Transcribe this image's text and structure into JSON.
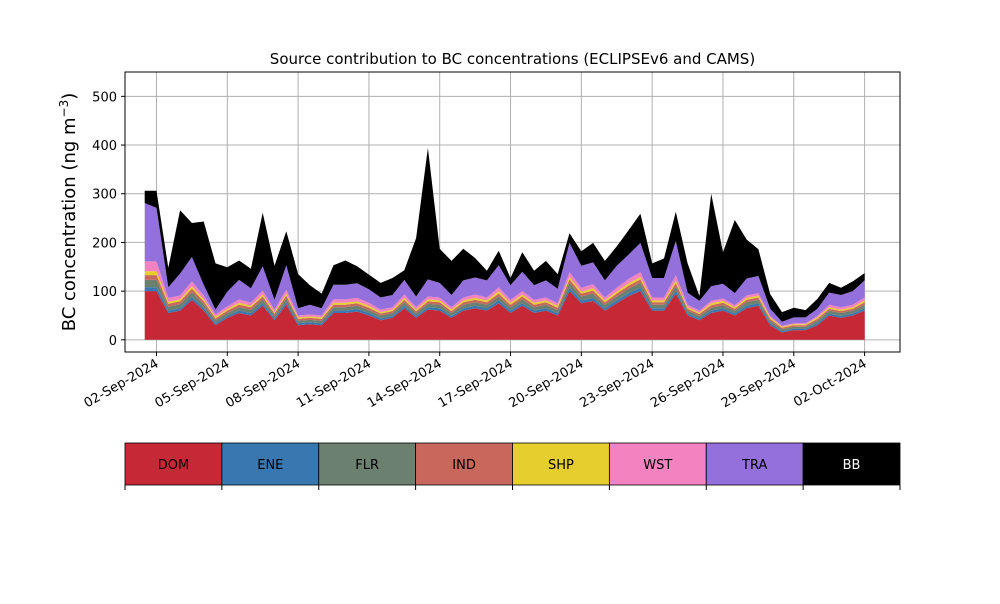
{
  "chart_data": {
    "type": "area",
    "stacked": true,
    "title": "Source contribution to BC concentrations (ECLIPSEv6 and CAMS)",
    "ylabel_main": "BC concentration (ng m",
    "ylabel_sup": "−3",
    "ylabel_close": ")",
    "xlabel": "",
    "ylim": [
      -25,
      550
    ],
    "xlim": [
      "2024-08-31T16:00",
      "2024-10-03T12:00"
    ],
    "yticks": [
      0,
      100,
      200,
      300,
      400,
      500
    ],
    "xticks": [
      {
        "date": "2024-09-02",
        "label": "02-Sep-2024"
      },
      {
        "date": "2024-09-05",
        "label": "05-Sep-2024"
      },
      {
        "date": "2024-09-08",
        "label": "08-Sep-2024"
      },
      {
        "date": "2024-09-11",
        "label": "11-Sep-2024"
      },
      {
        "date": "2024-09-14",
        "label": "14-Sep-2024"
      },
      {
        "date": "2024-09-17",
        "label": "17-Sep-2024"
      },
      {
        "date": "2024-09-20",
        "label": "20-Sep-2024"
      },
      {
        "date": "2024-09-23",
        "label": "23-Sep-2024"
      },
      {
        "date": "2024-09-26",
        "label": "26-Sep-2024"
      },
      {
        "date": "2024-09-29",
        "label": "29-Sep-2024"
      },
      {
        "date": "2024-10-02",
        "label": "02-Oct-2024"
      }
    ],
    "grid": true,
    "legend_placement": "bottom",
    "x": [
      "2024-09-01T12:00",
      "2024-09-02T00:00",
      "2024-09-02T12:00",
      "2024-09-03T00:00",
      "2024-09-03T12:00",
      "2024-09-04T00:00",
      "2024-09-04T12:00",
      "2024-09-05T00:00",
      "2024-09-05T12:00",
      "2024-09-06T00:00",
      "2024-09-06T12:00",
      "2024-09-07T00:00",
      "2024-09-07T12:00",
      "2024-09-08T00:00",
      "2024-09-08T12:00",
      "2024-09-09T00:00",
      "2024-09-09T12:00",
      "2024-09-10T00:00",
      "2024-09-10T12:00",
      "2024-09-11T00:00",
      "2024-09-11T12:00",
      "2024-09-12T00:00",
      "2024-09-12T12:00",
      "2024-09-13T00:00",
      "2024-09-13T12:00",
      "2024-09-14T00:00",
      "2024-09-14T12:00",
      "2024-09-15T00:00",
      "2024-09-15T12:00",
      "2024-09-16T00:00",
      "2024-09-16T12:00",
      "2024-09-17T00:00",
      "2024-09-17T12:00",
      "2024-09-18T00:00",
      "2024-09-18T12:00",
      "2024-09-19T00:00",
      "2024-09-19T12:00",
      "2024-09-20T00:00",
      "2024-09-20T12:00",
      "2024-09-21T00:00",
      "2024-09-21T12:00",
      "2024-09-22T00:00",
      "2024-09-22T12:00",
      "2024-09-23T00:00",
      "2024-09-23T12:00",
      "2024-09-24T00:00",
      "2024-09-24T12:00",
      "2024-09-25T00:00",
      "2024-09-25T12:00",
      "2024-09-26T00:00",
      "2024-09-26T12:00",
      "2024-09-27T00:00",
      "2024-09-27T12:00",
      "2024-09-28T00:00",
      "2024-09-28T12:00",
      "2024-09-29T00:00",
      "2024-09-29T12:00",
      "2024-09-30T00:00",
      "2024-09-30T12:00",
      "2024-10-01T00:00",
      "2024-10-01T12:00",
      "2024-10-02T00:00"
    ],
    "series": [
      {
        "name": "DOM",
        "color": "#C62836",
        "values": [
          100,
          100,
          55,
          60,
          82,
          60,
          30,
          45,
          55,
          50,
          70,
          40,
          72,
          30,
          32,
          30,
          55,
          55,
          58,
          50,
          40,
          45,
          65,
          45,
          62,
          60,
          45,
          60,
          65,
          60,
          75,
          55,
          70,
          55,
          60,
          50,
          100,
          75,
          80,
          60,
          75,
          90,
          100,
          60,
          60,
          95,
          50,
          40,
          55,
          60,
          50,
          65,
          70,
          30,
          15,
          20,
          20,
          30,
          50,
          45,
          50,
          60
        ]
      },
      {
        "name": "ENE",
        "color": "#3877B0",
        "values": [
          8,
          8,
          5,
          5,
          6,
          5,
          4,
          4,
          5,
          5,
          5,
          4,
          5,
          4,
          4,
          4,
          5,
          5,
          5,
          5,
          4,
          4,
          5,
          4,
          5,
          5,
          4,
          5,
          5,
          5,
          6,
          5,
          5,
          5,
          5,
          5,
          7,
          6,
          6,
          5,
          6,
          6,
          7,
          5,
          5,
          6,
          4,
          4,
          5,
          5,
          4,
          5,
          5,
          4,
          3,
          3,
          3,
          4,
          4,
          4,
          4,
          5
        ]
      },
      {
        "name": "FLR",
        "color": "#6C8070",
        "values": [
          15,
          15,
          8,
          8,
          10,
          8,
          6,
          6,
          7,
          7,
          8,
          6,
          8,
          5,
          5,
          5,
          7,
          7,
          7,
          6,
          6,
          6,
          7,
          6,
          7,
          7,
          6,
          7,
          7,
          7,
          8,
          7,
          8,
          7,
          7,
          6,
          10,
          8,
          9,
          7,
          8,
          9,
          10,
          7,
          7,
          9,
          6,
          5,
          6,
          6,
          6,
          7,
          7,
          5,
          4,
          4,
          4,
          5,
          6,
          6,
          6,
          7
        ]
      },
      {
        "name": "IND",
        "color": "#C8685C",
        "values": [
          10,
          10,
          6,
          6,
          7,
          6,
          4,
          5,
          5,
          5,
          6,
          4,
          6,
          4,
          4,
          4,
          5,
          5,
          5,
          5,
          4,
          4,
          5,
          4,
          5,
          5,
          4,
          5,
          5,
          5,
          6,
          5,
          6,
          5,
          5,
          5,
          7,
          6,
          6,
          5,
          6,
          6,
          7,
          5,
          5,
          6,
          4,
          4,
          5,
          5,
          4,
          5,
          5,
          4,
          3,
          3,
          3,
          4,
          4,
          4,
          4,
          5
        ]
      },
      {
        "name": "SHP",
        "color": "#E6CE2F",
        "values": [
          8,
          8,
          4,
          4,
          5,
          4,
          3,
          3,
          4,
          3,
          4,
          3,
          4,
          3,
          3,
          3,
          4,
          4,
          4,
          4,
          3,
          3,
          4,
          3,
          4,
          4,
          3,
          4,
          4,
          4,
          5,
          4,
          4,
          4,
          4,
          4,
          5,
          4,
          5,
          4,
          4,
          5,
          5,
          4,
          4,
          5,
          3,
          3,
          4,
          4,
          3,
          4,
          4,
          3,
          2,
          2,
          2,
          3,
          3,
          3,
          3,
          4
        ]
      },
      {
        "name": "WST",
        "color": "#F283C0",
        "values": [
          20,
          20,
          8,
          8,
          10,
          8,
          5,
          6,
          7,
          6,
          8,
          5,
          8,
          4,
          4,
          4,
          7,
          7,
          7,
          6,
          5,
          5,
          7,
          5,
          6,
          6,
          5,
          6,
          7,
          6,
          8,
          6,
          7,
          6,
          6,
          5,
          10,
          8,
          8,
          6,
          8,
          9,
          10,
          6,
          6,
          12,
          5,
          4,
          5,
          5,
          4,
          5,
          5,
          3,
          2,
          2,
          2,
          3,
          5,
          5,
          5,
          6
        ]
      },
      {
        "name": "TRA",
        "color": "#9470DC",
        "values": [
          120,
          110,
          22,
          45,
          50,
          22,
          10,
          30,
          40,
          30,
          50,
          20,
          50,
          15,
          20,
          15,
          30,
          30,
          30,
          28,
          25,
          25,
          30,
          22,
          35,
          30,
          25,
          35,
          35,
          35,
          45,
          30,
          40,
          30,
          35,
          30,
          60,
          45,
          45,
          35,
          45,
          50,
          60,
          40,
          40,
          70,
          25,
          20,
          30,
          30,
          25,
          35,
          35,
          15,
          8,
          12,
          12,
          15,
          25,
          25,
          28,
          35
        ]
      },
      {
        "name": "BB",
        "color": "#000000",
        "values": [
          25,
          35,
          40,
          130,
          70,
          130,
          95,
          50,
          40,
          40,
          110,
          70,
          70,
          70,
          40,
          30,
          40,
          50,
          35,
          30,
          30,
          35,
          20,
          120,
          270,
          70,
          70,
          65,
          40,
          20,
          30,
          15,
          40,
          30,
          40,
          30,
          20,
          30,
          40,
          40,
          40,
          50,
          60,
          30,
          40,
          60,
          60,
          10,
          190,
          65,
          150,
          80,
          55,
          30,
          20,
          20,
          15,
          20,
          20,
          15,
          20,
          15
        ]
      }
    ]
  },
  "legend": {
    "items": [
      {
        "name": "DOM",
        "color": "#C62836",
        "text_color": "#000000"
      },
      {
        "name": "ENE",
        "color": "#3877B0",
        "text_color": "#000000"
      },
      {
        "name": "FLR",
        "color": "#6C8070",
        "text_color": "#000000"
      },
      {
        "name": "IND",
        "color": "#C8685C",
        "text_color": "#000000"
      },
      {
        "name": "SHP",
        "color": "#E6CE2F",
        "text_color": "#000000"
      },
      {
        "name": "WST",
        "color": "#F283C0",
        "text_color": "#000000"
      },
      {
        "name": "TRA",
        "color": "#9470DC",
        "text_color": "#000000"
      },
      {
        "name": "BB",
        "color": "#000000",
        "text_color": "#ffffff"
      }
    ]
  }
}
